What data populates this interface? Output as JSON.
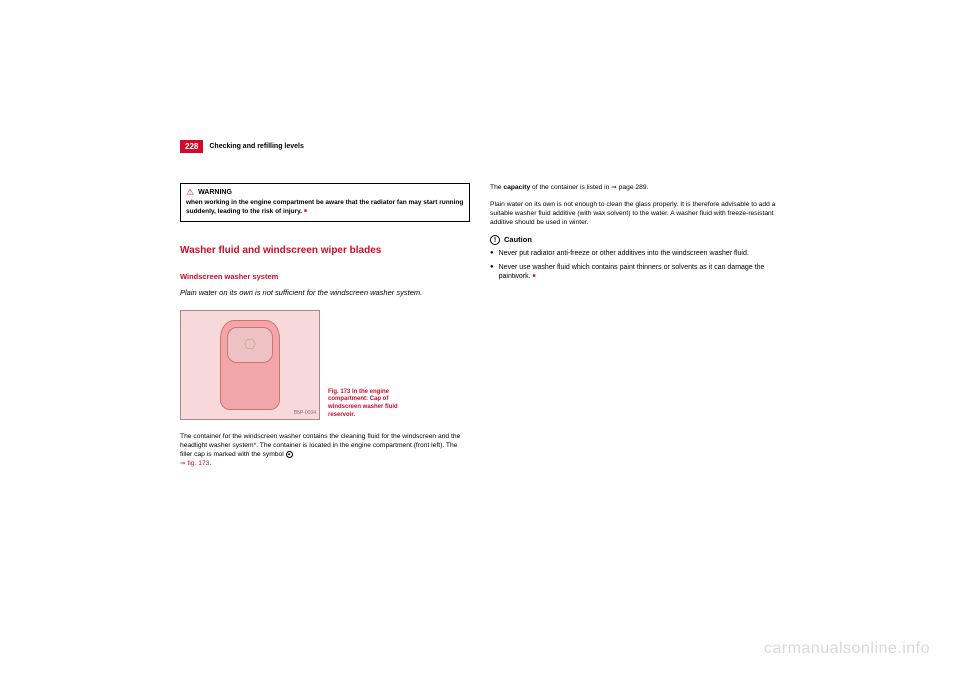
{
  "page_number": "228",
  "header": "Checking and refilling levels",
  "warning": {
    "label": "WARNING",
    "text": "when working in the engine compartment be aware that the radiator fan may start running suddenly, leading to the risk of injury."
  },
  "section_title": "Washer fluid and windscreen wiper blades",
  "subsection_title": "Windscreen washer system",
  "lead": "Plain water on its own is not sufficient for the windscreen washer system.",
  "figure": {
    "code": "B5P-0034",
    "caption": "Fig. 173   In the engine compartment: Cap of windscreen washer fluid reservoir."
  },
  "left_body": "The container for the windscreen washer contains the cleaning fluid for the windscreen and the headlight washer system*. The container is located in the engine compartment (front left). The filler cap is marked with the symbol ",
  "left_ref": "⇒ fig. 173",
  "right_p1_a": "The ",
  "right_p1_b": "capacity",
  "right_p1_c": " of the container is listed in ⇒ page 289.",
  "right_p2": "Plain water on its own is not enough to clean the glass properly. It is therefore advisable to add a suitable washer fluid additive (with wax solvent) to the water. A washer fluid with freeze-resistant additive should be used in winter.",
  "caution_label": "Caution",
  "caution_b1": "Never put radiator anti-freeze or other additives into the windscreen washer fluid.",
  "caution_b2": "Never use washer fluid which contains paint thinners or solvents as it can damage the paintwork.",
  "watermark": "carmanualsonline.info",
  "colors": {
    "brand_red": "#d20a28",
    "fig_bg": "#f7d9db",
    "cap_fill": "#f2a6aa",
    "watermark": "#d9d9d9"
  }
}
